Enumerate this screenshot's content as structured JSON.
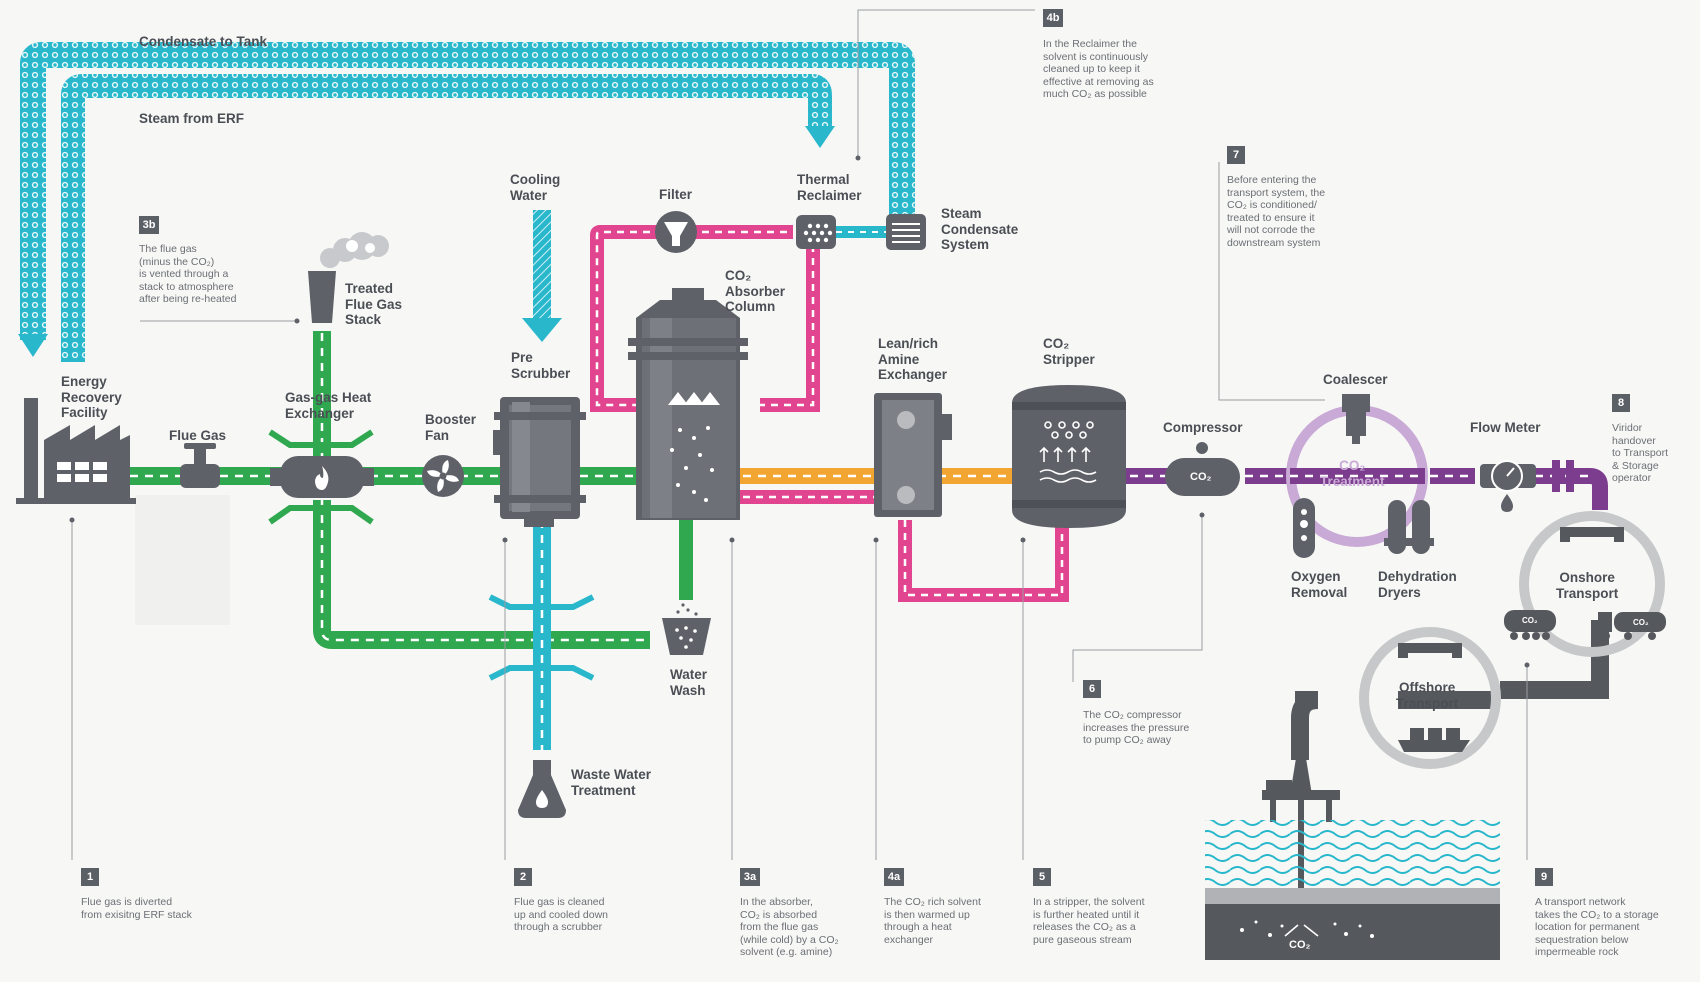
{
  "colors": {
    "flue": "#2fa84f",
    "cool": "#29b7cc",
    "solvent": "#e2458f",
    "lean": "#f2a531",
    "co2": "#7d3d8e",
    "transport": "#55585d",
    "ring": "#c9a9d6",
    "grey": "#5e6168"
  },
  "labels": {
    "condensate_to_tank": "Condensate to Tank",
    "steam_from_erf": "Steam from ERF",
    "energy_recovery": "Energy\nRecovery\nFacility",
    "flue_gas": "Flue Gas",
    "gas_gas_hx": "Gas-gas Heat\nExchanger",
    "treated_stack": "Treated\nFlue Gas\nStack",
    "booster_fan": "Booster\nFan",
    "cooling_water": "Cooling\nWater",
    "pre_scrubber": "Pre\nScrubber",
    "filter": "Filter",
    "thermal_reclaimer": "Thermal\nReclaimer",
    "steam_condensate": "Steam\nCondensate\nSystem",
    "absorber": "CO₂\nAbsorber\nColumn",
    "lean_rich": "Lean/rich\nAmine\nExchanger",
    "stripper": "CO₂\nStripper",
    "compressor": "Compressor",
    "coalescer": "Coalescer",
    "co2_treatment": "CO₂\nTreatment",
    "flow_meter": "Flow Meter",
    "oxygen_removal": "Oxygen\nRemoval",
    "dehydration": "Dehydration\nDryers",
    "onshore": "Onshore\nTransport",
    "offshore": "Offshore\nTransport",
    "water_wash": "Water\nWash",
    "waste_water": "Waste Water\nTreatment",
    "co2_tag": "CO₂",
    "truck_tag": "CO₂",
    "rail_tag": "CO₂",
    "seabed_tag": "CO₂"
  },
  "notes": [
    {
      "id": "1",
      "badge": "1",
      "text": "Flue gas is diverted\nfrom exisitng ERF stack"
    },
    {
      "id": "2",
      "badge": "2",
      "text": "Flue gas is cleaned\nup and cooled down\nthrough a scrubber"
    },
    {
      "id": "3a",
      "badge": "3a",
      "text": "In the absorber,\nCO₂ is absorbed\nfrom the flue gas\n(while cold) by a CO₂\nsolvent (e.g. amine)"
    },
    {
      "id": "3b",
      "badge": "3b",
      "text": "The flue gas\n(minus the CO₂)\nis vented through a\nstack to atmosphere\nafter being re-heated"
    },
    {
      "id": "4a",
      "badge": "4a",
      "text": "The CO₂ rich solvent\nis then warmed up\nthrough a heat\nexchanger"
    },
    {
      "id": "4b",
      "badge": "4b",
      "text": "In the Reclaimer the\nsolvent is continuously\ncleaned up to keep it\neffective at removing as\nmuch CO₂ as possible"
    },
    {
      "id": "5",
      "badge": "5",
      "text": "In a stripper, the solvent\nis further heated until it\nreleases the CO₂ as a\npure gaseous stream"
    },
    {
      "id": "6",
      "badge": "6",
      "text": "The CO₂ compressor\nincreases the pressure\nto pump CO₂ away"
    },
    {
      "id": "7",
      "badge": "7",
      "text": "Before entering the\ntransport system, the\nCO₂ is conditioned/\ntreated to ensure it\nwill not corrode the\ndownstream system"
    },
    {
      "id": "8",
      "badge": "8",
      "text": "Viridor\nhandover\nto Transport\n& Storage\noperator"
    },
    {
      "id": "9",
      "badge": "9",
      "text": "A transport network\ntakes the CO₂ to a storage\nlocation for permanent\nsequestration below\nimpermeable rock"
    }
  ]
}
